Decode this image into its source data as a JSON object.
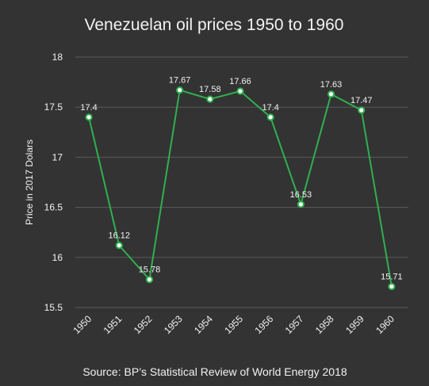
{
  "chart_data": {
    "type": "line",
    "title": "Venezuelan oil prices 1950 to 1960",
    "ylabel": "Price in 2017 Dolars",
    "xlabel": "",
    "source": "Source: BP’s Statistical Review of World Energy 2018",
    "categories": [
      "1950",
      "1951",
      "1952",
      "1953",
      "1954",
      "1955",
      "1956",
      "1957",
      "1958",
      "1959",
      "1960"
    ],
    "values": [
      17.4,
      16.12,
      15.78,
      17.67,
      17.58,
      17.66,
      17.4,
      16.53,
      17.63,
      17.47,
      15.71
    ],
    "data_labels": [
      "17.4",
      "16.12",
      "15.78",
      "17.67",
      "17.58",
      "17.66",
      "17.4",
      "16.53",
      "17.63",
      "17.47",
      "15.71"
    ],
    "ylim": [
      15.5,
      18
    ],
    "yticks": [
      "15.5",
      "16",
      "16.5",
      "17",
      "17.5",
      "18"
    ],
    "grid": true,
    "colors": {
      "line": "#2fb04f",
      "marker_fill": "#ffffff",
      "background": "#333333"
    }
  }
}
